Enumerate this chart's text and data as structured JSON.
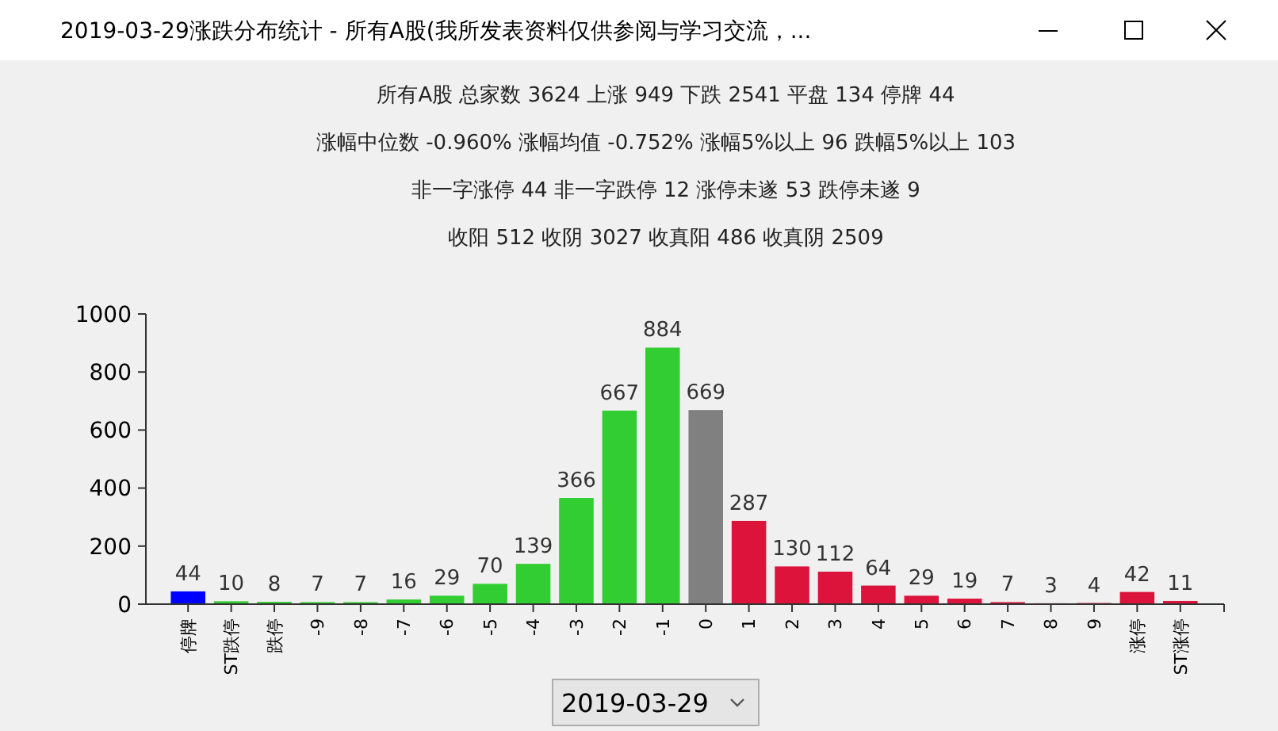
{
  "chart_data": {
    "type": "bar",
    "title": "2019-03-29涨跌分布统计 - 所有A股(我所发表资料仅供参阅与学习交流，...",
    "annotations": [
      "所有A股 总家数 3624  上涨 949 下跌 2541   平盘 134   停牌 44",
      "涨幅中位数 -0.960%    涨幅均值 -0.752%    涨幅5%以上 96    跌幅5%以上 103",
      "非一字涨停 44    非一字跌停 12    涨停未遂 53    跌停未遂 9",
      "收阳 512    收阴 3027    收真阳 486    收真阴 2509",
      "2019-03-29"
    ],
    "categories": [
      "停牌",
      "ST跌停",
      "跌停",
      "-9",
      "-8",
      "-7",
      "-6",
      "-5",
      "-4",
      "-3",
      "-2",
      "-1",
      "0",
      "1",
      "2",
      "3",
      "4",
      "5",
      "6",
      "7",
      "8",
      "9",
      "涨停",
      "ST涨停"
    ],
    "values": [
      44,
      10,
      8,
      7,
      7,
      16,
      29,
      70,
      139,
      366,
      667,
      884,
      669,
      287,
      130,
      112,
      64,
      29,
      19,
      7,
      3,
      4,
      42,
      11
    ],
    "colors": [
      "#0000ff",
      "#32cd32",
      "#32cd32",
      "#32cd32",
      "#32cd32",
      "#32cd32",
      "#32cd32",
      "#32cd32",
      "#32cd32",
      "#32cd32",
      "#32cd32",
      "#32cd32",
      "#808080",
      "#dc143c",
      "#dc143c",
      "#dc143c",
      "#dc143c",
      "#dc143c",
      "#dc143c",
      "#dc143c",
      "#dc143c",
      "#dc143c",
      "#dc143c",
      "#dc143c"
    ],
    "ylim": [
      0,
      1000
    ],
    "yticks": [
      0,
      200,
      400,
      600,
      800,
      1000
    ],
    "data_labels": true
  }
}
